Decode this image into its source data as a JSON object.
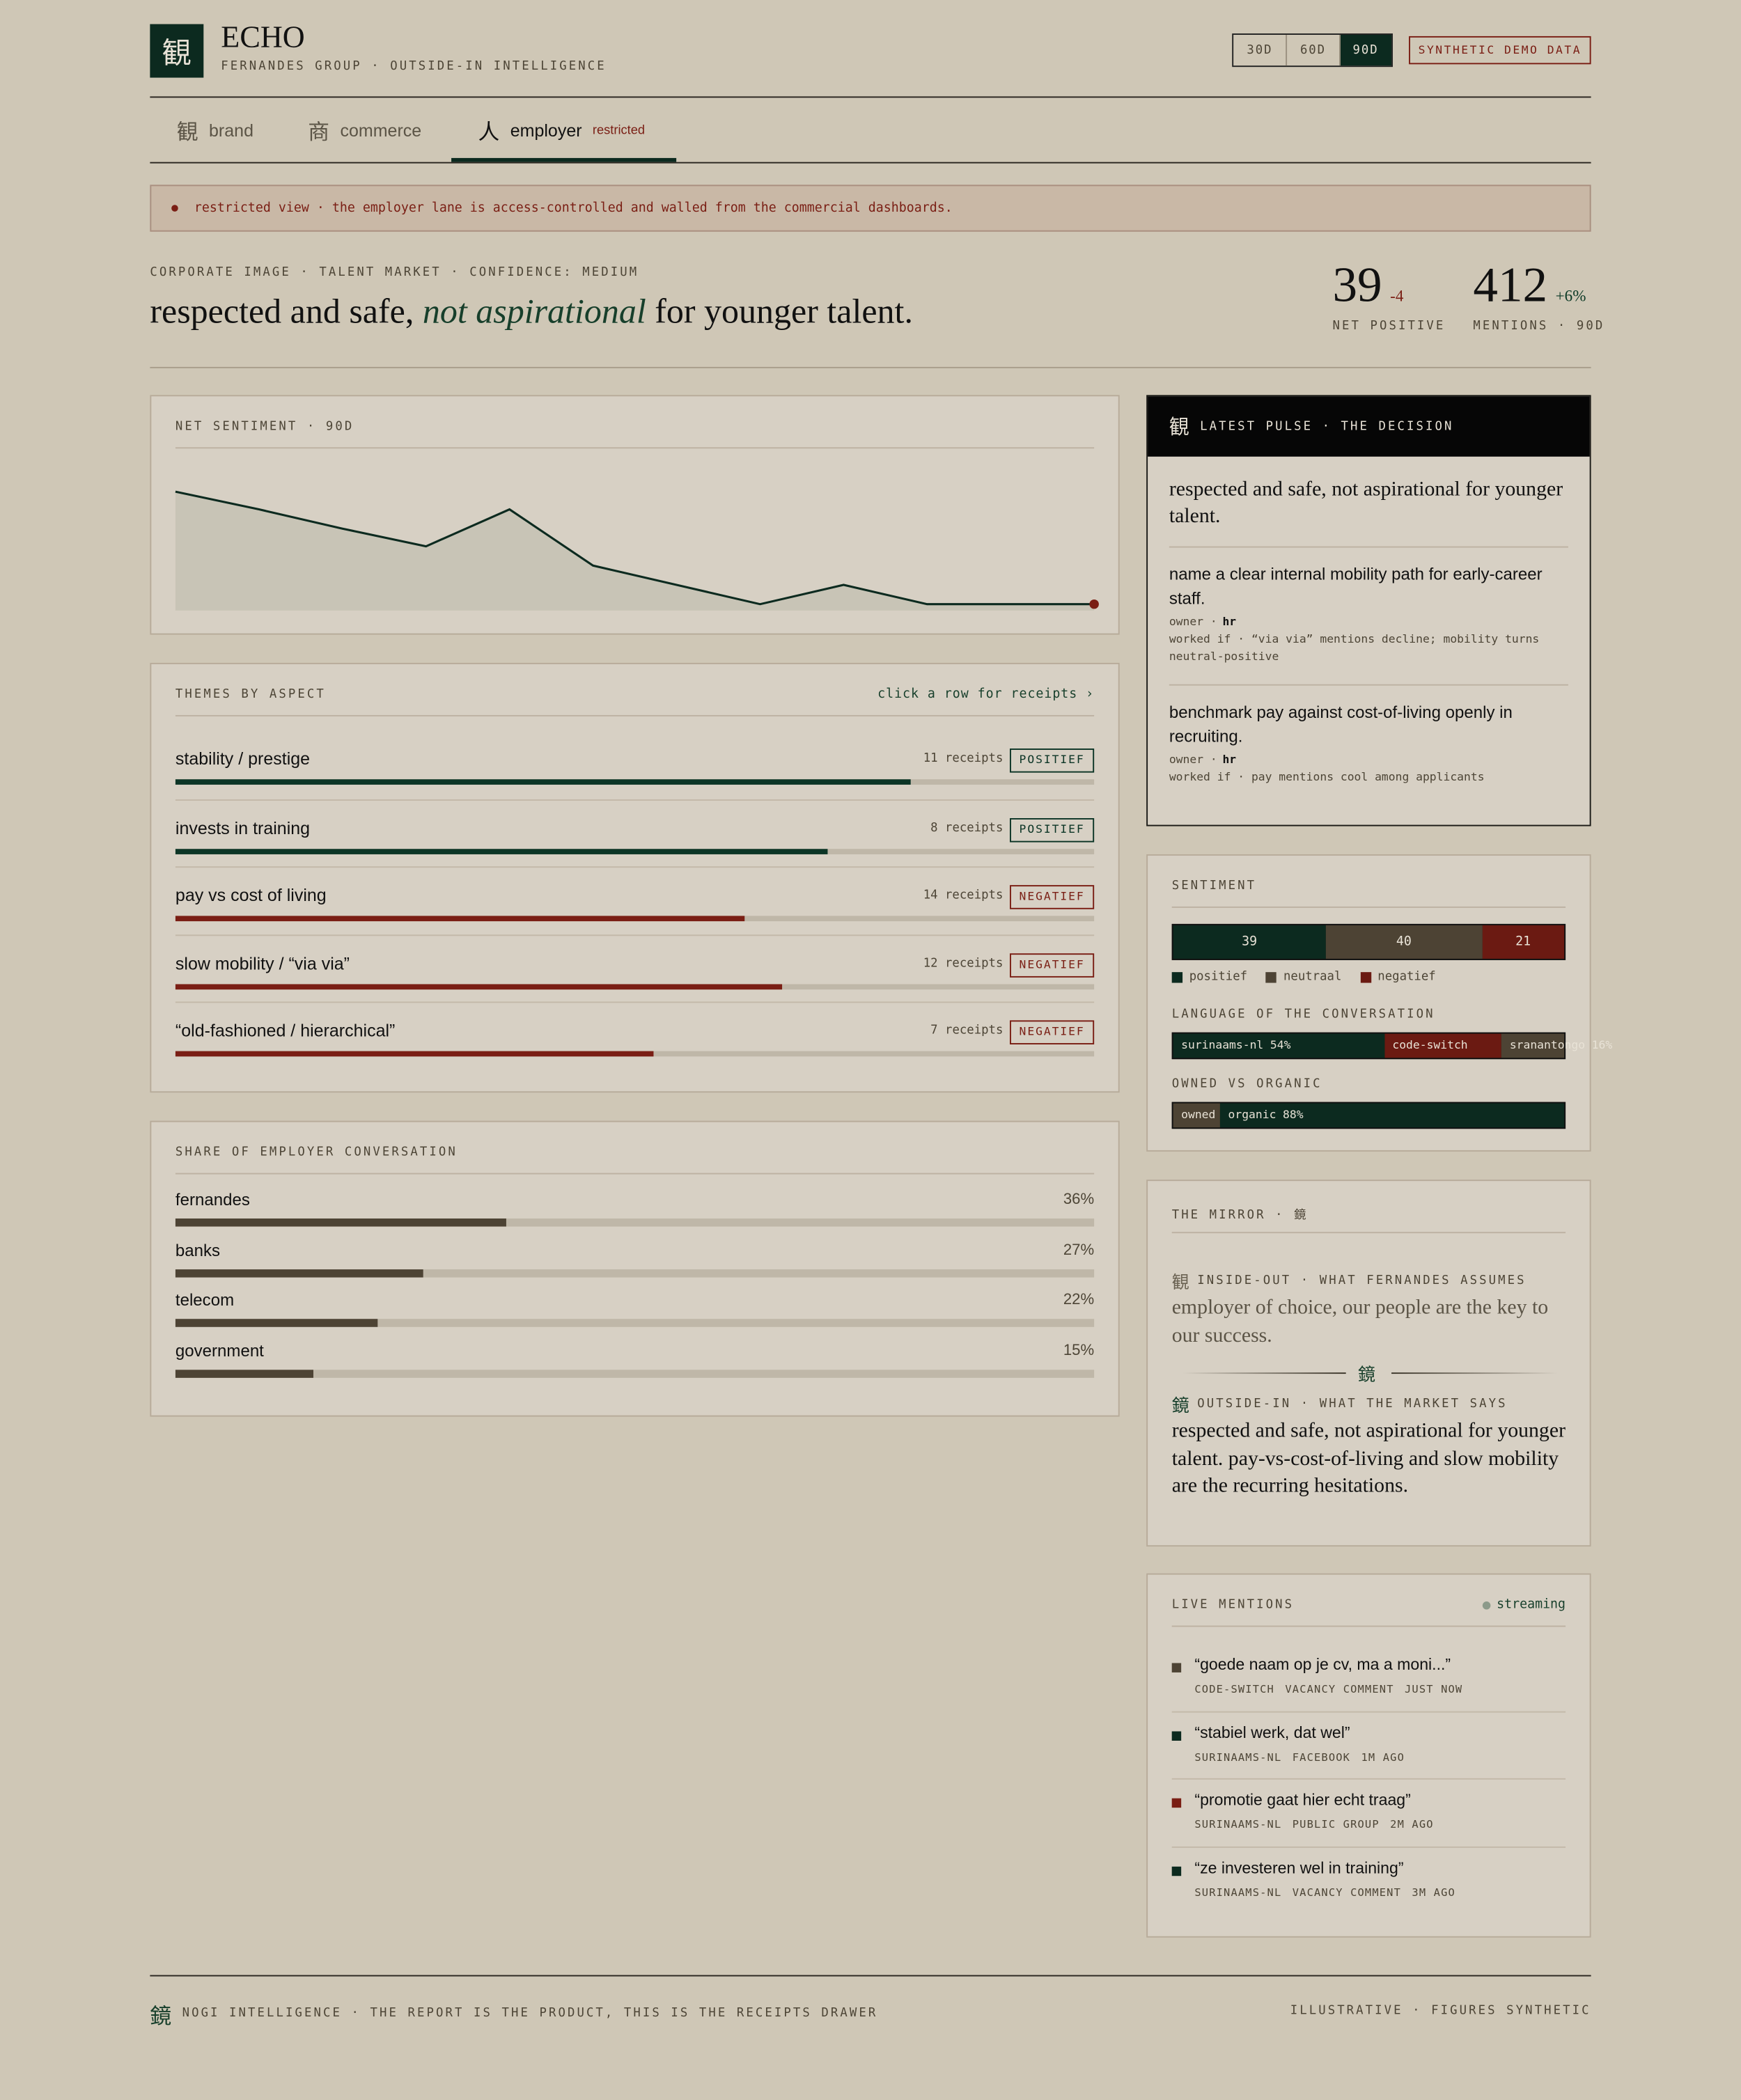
{
  "header": {
    "logo": "観",
    "name": "ECHO",
    "subtitle": "FERNANDES GROUP · OUTSIDE-IN INTELLIGENCE",
    "ranges": [
      {
        "label": "30D"
      },
      {
        "label": "60D"
      },
      {
        "label": "90D",
        "active": true
      }
    ],
    "badge": "SYNTHETIC DEMO DATA"
  },
  "tabs": [
    {
      "icon": "観",
      "label": "brand"
    },
    {
      "icon": "商",
      "label": "commerce"
    },
    {
      "icon": "人",
      "label": "employer",
      "badge": "restricted",
      "active": true
    }
  ],
  "notice": "restricted view · the employer lane is access-controlled and walled from the commercial dashboards.",
  "hero": {
    "kicker": "CORPORATE IMAGE · TALENT MARKET · CONFIDENCE: MEDIUM",
    "headline_start": "respected and safe, ",
    "headline_em": "not aspirational",
    "headline_end": " for younger talent.",
    "kpis": [
      {
        "value": 39,
        "delta": -4,
        "delta_color": "#7a1e14",
        "label": "NET POSITIVE"
      },
      {
        "value": 412,
        "delta": {
          "value": 6,
          "label": "+6%"
        },
        "delta_color": "#0c3a26",
        "label": "MENTIONS · 90D"
      }
    ]
  },
  "net_sentiment": {
    "type": "line",
    "title": "NET SENTIMENT · 90D",
    "values": [
      74,
      63,
      51,
      40,
      63,
      28,
      16,
      4,
      16,
      4,
      4,
      4
    ],
    "ylim": [
      0,
      100
    ],
    "color": "#0c2a1f",
    "area_color": "#c8c4b6",
    "end_color": "#7a1e14"
  },
  "themes": {
    "title": "THEMES BY ASPECT",
    "hint": "click a row for receipts ›",
    "xlim": [
      0,
      100
    ],
    "rows": [
      {
        "label": "stability / prestige",
        "receipts": "11 receipts",
        "tag": "POSITIEF",
        "score": 80,
        "color": "#0c3526"
      },
      {
        "label": "invests in training",
        "receipts": "8 receipts",
        "tag": "POSITIEF",
        "score": 71,
        "color": "#0c3526"
      },
      {
        "label": "pay vs cost of living",
        "receipts": "14 receipts",
        "tag": "NEGATIEF",
        "score": 62,
        "color": "#7a1e14"
      },
      {
        "label": "slow mobility / “via via”",
        "receipts": "12 receipts",
        "tag": "NEGATIEF",
        "score": 66,
        "color": "#7a1e14"
      },
      {
        "label": "“old-fashioned / hierarchical”",
        "receipts": "7 receipts",
        "tag": "NEGATIEF",
        "score": 52,
        "color": "#7a1e14"
      }
    ]
  },
  "share": {
    "title": "SHARE OF EMPLOYER CONVERSATION",
    "xlim": [
      0,
      100
    ],
    "color": "#4d4334",
    "rows": [
      {
        "name": "fernandes",
        "value": 36,
        "value_label": "36%"
      },
      {
        "name": "banks",
        "value": 27,
        "value_label": "27%"
      },
      {
        "name": "telecom",
        "value": 22,
        "value_label": "22%"
      },
      {
        "name": "government",
        "value": 15,
        "value_label": "15%"
      }
    ]
  },
  "decision": {
    "icon": "観",
    "title": "LATEST PULSE · THE DECISION",
    "headline": "respected and safe, not aspirational for younger talent.",
    "actions": [
      {
        "text": "name a clear internal mobility path for early-career staff.",
        "owner_label": "owner ·",
        "owner": "hr",
        "worked_if": "worked if · “via via” mentions decline; mobility turns neutral-positive"
      },
      {
        "text": "benchmark pay against cost-of-living openly in recruiting.",
        "owner_label": "owner ·",
        "owner": "hr",
        "worked_if": "worked if · pay mentions cool among applicants"
      }
    ]
  },
  "sentiment": {
    "title": "SENTIMENT",
    "segments": [
      {
        "name": "positief",
        "value": 39,
        "color": "#0c2a1f"
      },
      {
        "name": "neutraal",
        "value": 40,
        "color": "#4d4334"
      },
      {
        "name": "negatief",
        "value": 21,
        "color": "#6b1a12"
      }
    ],
    "language": {
      "title": "LANGUAGE OF THE CONVERSATION",
      "segments": [
        {
          "name": "surinaams-nl",
          "value": 54,
          "value_label": "54%",
          "color": "#0c2a1f"
        },
        {
          "name": "code-switch",
          "value": 30,
          "color": "#6b1a12"
        },
        {
          "name": "sranantongo",
          "value": 16,
          "value_label": "16%",
          "color": "#4d4334"
        }
      ]
    },
    "owned": {
      "title": "OWNED VS ORGANIC",
      "segments": [
        {
          "name": "owned",
          "value": 12,
          "color": "#4d4334"
        },
        {
          "name": "organic",
          "value": 88,
          "value_label": "88%",
          "color": "#0c2a1f"
        }
      ]
    }
  },
  "mirror": {
    "title": "THE MIRROR · 鏡",
    "inside": {
      "icon": "観",
      "label": "INSIDE-OUT · WHAT FERNANDES ASSUMES",
      "quote": "employer of choice, our people are the key to our success."
    },
    "divider": "鏡",
    "outside": {
      "icon": "鏡",
      "label": "OUTSIDE-IN · WHAT THE MARKET SAYS",
      "quote": "respected and safe, not aspirational for younger talent. pay-vs-cost-of-living and slow mobility are the recurring hesitations."
    }
  },
  "live": {
    "title": "LIVE MENTIONS",
    "status": "streaming",
    "items": [
      {
        "quote": "“goede naam op je cv, ma a moni...”",
        "tags": [
          "CODE-SWITCH",
          "VACANCY COMMENT",
          "JUST NOW"
        ],
        "color": "#4d4334"
      },
      {
        "quote": "“stabiel werk, dat wel”",
        "tags": [
          "SURINAAMS-NL",
          "FACEBOOK",
          "1M AGO"
        ],
        "color": "#0c2a1f"
      },
      {
        "quote": "“promotie gaat hier echt traag”",
        "tags": [
          "SURINAAMS-NL",
          "PUBLIC GROUP",
          "2M AGO"
        ],
        "color": "#7a1e14"
      },
      {
        "quote": "“ze investeren wel in training”",
        "tags": [
          "SURINAAMS-NL",
          "VACANCY COMMENT",
          "3M AGO"
        ],
        "color": "#0c2a1f"
      }
    ]
  },
  "footer": {
    "icon": "鏡",
    "left": "NOGI INTELLIGENCE · THE REPORT IS THE PRODUCT, THIS IS THE RECEIPTS DRAWER",
    "right": "ILLUSTRATIVE · FIGURES SYNTHETIC"
  }
}
